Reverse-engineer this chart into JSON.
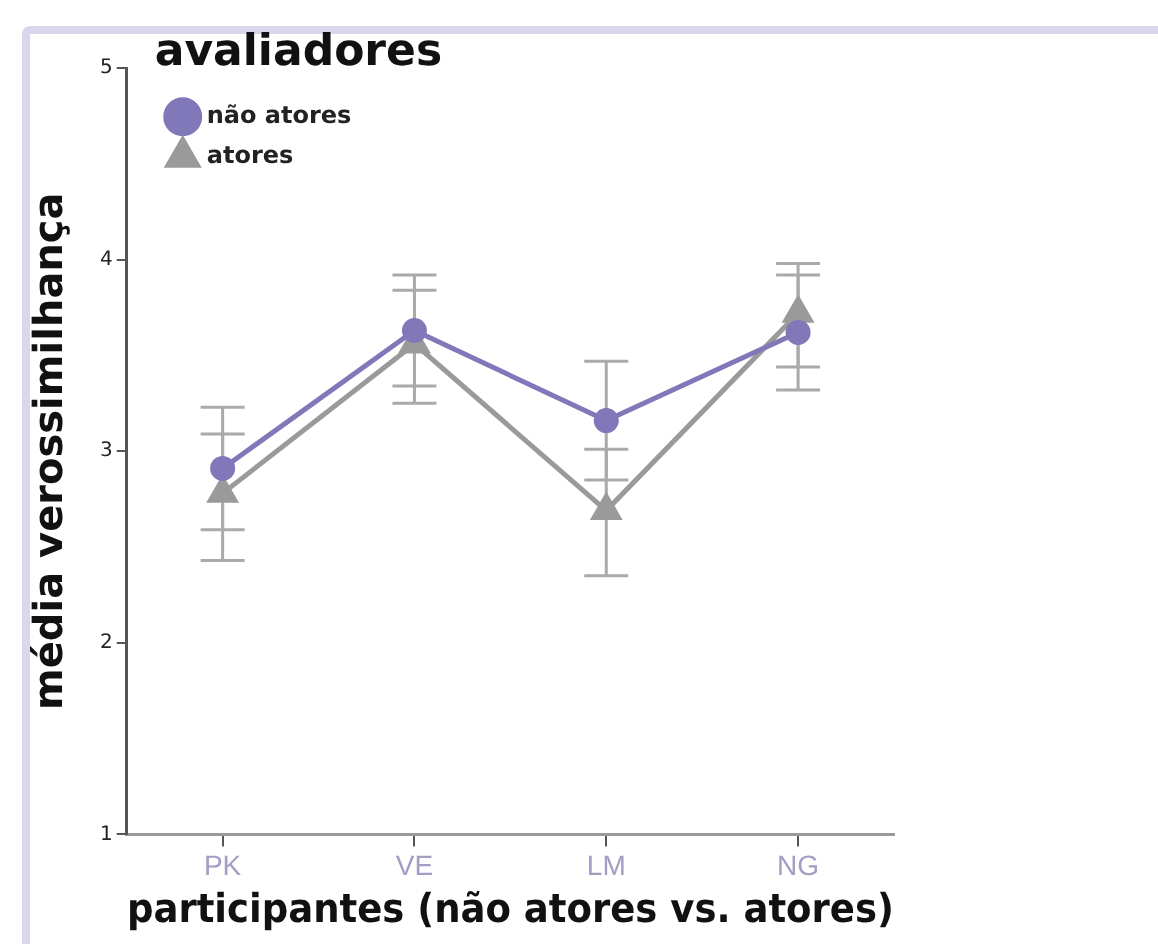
{
  "chart_data": {
    "type": "line",
    "xlabel": "participantes (não atores vs. atores)",
    "ylabel": "média verossimilhança",
    "legend_title": "avaliadores",
    "categories": [
      "PK",
      "VE",
      "LM",
      "NG"
    ],
    "series": [
      {
        "name": "não atores",
        "color": "#8078b8",
        "marker": "circle",
        "values": [
          2.91,
          3.63,
          3.16,
          3.62
        ],
        "errors": [
          [
            2.59,
            3.23
          ],
          [
            3.34,
            3.92
          ],
          [
            2.85,
            3.47
          ],
          [
            3.32,
            3.92
          ]
        ]
      },
      {
        "name": "atores",
        "color": "#9a9a9a",
        "marker": "triangle",
        "values": [
          2.78,
          3.56,
          2.69,
          3.72
        ],
        "errors": [
          [
            2.43,
            3.09
          ],
          [
            3.25,
            3.84
          ],
          [
            2.35,
            3.01
          ],
          [
            3.44,
            3.98
          ]
        ]
      }
    ],
    "ylim": [
      1,
      5
    ],
    "yticks": [
      1,
      2,
      3,
      4,
      5
    ],
    "grid": false,
    "legend": "top left"
  }
}
